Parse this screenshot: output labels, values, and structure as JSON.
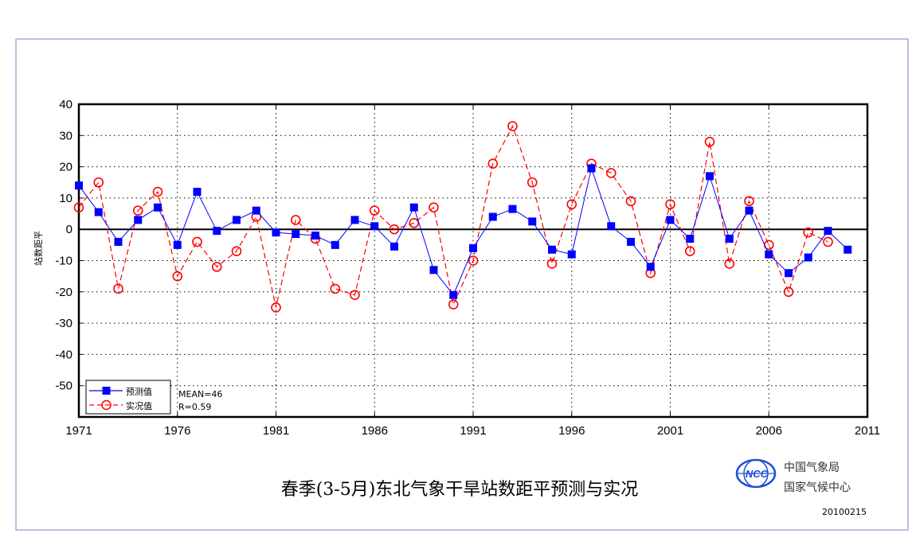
{
  "colors": {
    "frame": "#a070c0",
    "forecast": "#0000ff",
    "observed": "#ff0000",
    "logo": "#1a4fd6"
  },
  "chart_data": {
    "type": "line",
    "title": "春季(3-5月)东北气象干旱站数距平预测与实况",
    "xlabel": "",
    "ylabel": "站数距平",
    "xlim": [
      1971,
      2011
    ],
    "ylim": [
      -60,
      40
    ],
    "x_ticks": [
      1971,
      1976,
      1981,
      1986,
      1991,
      1996,
      2001,
      2006,
      2011
    ],
    "y_ticks": [
      40,
      30,
      20,
      10,
      0,
      -10,
      -20,
      -30,
      -40,
      -50
    ],
    "grid": true,
    "legend_position": "bottom-left",
    "series": [
      {
        "name": "预测值",
        "style": "solid-square",
        "x": [
          1971,
          1972,
          1973,
          1974,
          1975,
          1976,
          1977,
          1978,
          1979,
          1980,
          1981,
          1982,
          1983,
          1984,
          1985,
          1986,
          1987,
          1988,
          1989,
          1990,
          1991,
          1992,
          1993,
          1994,
          1995,
          1996,
          1997,
          1998,
          1999,
          2000,
          2001,
          2002,
          2003,
          2004,
          2005,
          2006,
          2007,
          2008,
          2009,
          2010
        ],
        "values": [
          14,
          5.5,
          -4,
          3,
          7,
          -5,
          12,
          -0.5,
          3,
          6,
          -1,
          -1.5,
          -2,
          -5,
          3,
          1,
          -5.5,
          7,
          -13,
          -21,
          -6,
          4,
          6.5,
          2.5,
          -6.5,
          -8,
          19.5,
          1,
          -4,
          -12,
          3,
          -3,
          17,
          -3,
          6,
          -8,
          -14,
          -9,
          -0.5,
          -6.5
        ]
      },
      {
        "name": "实况值",
        "style": "dashed-circle",
        "x": [
          1971,
          1972,
          1973,
          1974,
          1975,
          1976,
          1977,
          1978,
          1979,
          1980,
          1981,
          1982,
          1983,
          1984,
          1985,
          1986,
          1987,
          1988,
          1989,
          1990,
          1991,
          1992,
          1993,
          1994,
          1995,
          1996,
          1997,
          1998,
          1999,
          2000,
          2001,
          2002,
          2003,
          2004,
          2005,
          2006,
          2007,
          2008,
          2009
        ],
        "values": [
          7,
          15,
          -19,
          6,
          12,
          -15,
          -4,
          -12,
          -7,
          4,
          -25,
          3,
          -3,
          -19,
          -21,
          6,
          0,
          2,
          7,
          -24,
          -10,
          21,
          33,
          15,
          -11,
          8,
          21,
          18,
          9,
          -14,
          8,
          -7,
          28,
          -11,
          9,
          -5,
          -20,
          -1,
          -4
        ]
      }
    ],
    "annotations": [
      "MEAN=46",
      "R=0.59"
    ]
  },
  "org": {
    "logo_text": "NCC",
    "line1": "中国气象局",
    "line2": "国家气候中心"
  },
  "date_code": "20100215"
}
